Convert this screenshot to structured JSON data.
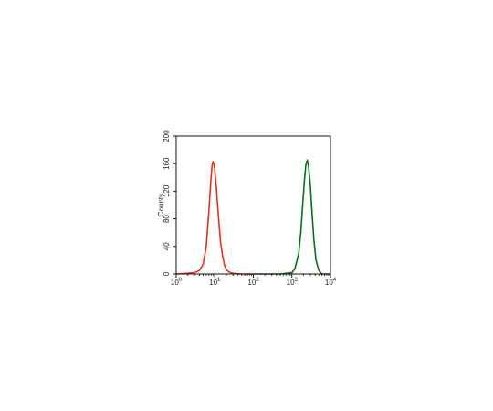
{
  "chart_data": {
    "type": "line",
    "title": "",
    "xlabel": "",
    "ylabel": "Counts",
    "x_scale": "log",
    "xlim": [
      1,
      10000
    ],
    "ylim": [
      0,
      200
    ],
    "grid": false,
    "legend": "none",
    "x_ticks": [
      {
        "base": "10",
        "exp": "0",
        "value": 1
      },
      {
        "base": "10",
        "exp": "1",
        "value": 10
      },
      {
        "base": "10",
        "exp": "2",
        "value": 100
      },
      {
        "base": "10",
        "exp": "3",
        "value": 1000
      },
      {
        "base": "10",
        "exp": "4",
        "value": 10000
      }
    ],
    "y_ticks": [
      "0",
      "40",
      "80",
      "120",
      "160",
      "200"
    ],
    "series": [
      {
        "color": "#e8301e",
        "x": [
          1,
          2,
          3,
          4,
          5,
          6,
          7,
          8,
          8.5,
          9,
          9.5,
          10,
          11,
          12,
          13,
          14,
          16,
          18,
          20,
          25,
          30,
          50,
          100
        ],
        "values": [
          0,
          1,
          2,
          5,
          14,
          40,
          90,
          140,
          158,
          163,
          160,
          150,
          125,
          95,
          70,
          48,
          25,
          12,
          6,
          2,
          1,
          0,
          0
        ]
      },
      {
        "color": "#0a6e1a",
        "x": [
          100,
          500,
          1000,
          1200,
          1500,
          1700,
          1900,
          2100,
          2300,
          2500,
          2700,
          3000,
          3300,
          3700,
          4200,
          5000,
          6000,
          10000
        ],
        "values": [
          0,
          0,
          2,
          8,
          30,
          60,
          100,
          135,
          158,
          165,
          155,
          130,
          90,
          50,
          20,
          5,
          0,
          0
        ]
      }
    ]
  }
}
